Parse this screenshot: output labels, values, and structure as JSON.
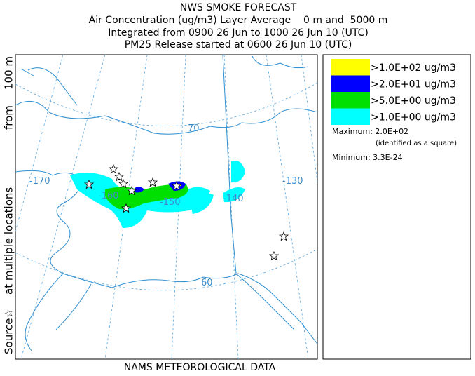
{
  "header": {
    "title": "NWS SMOKE FORECAST",
    "lines": [
      "Air Concentration (ug/m3) Layer Average    0 m and  5000 m",
      "Integrated from 0900 26 Jun to 1000 26 Jun 10 (UTC)",
      "PM25 Release started at 0600 26 Jun 10 (UTC)"
    ]
  },
  "side_label": {
    "source": "Source☆",
    "locations": "at multiple locations",
    "from": "from",
    "height": "100 m"
  },
  "footer": "NAMS METEOROLOGICAL DATA",
  "map": {
    "labels": {
      "lon_170": "-170",
      "lon_160": "-160",
      "lon_150": "-150",
      "lon_140": "-140",
      "lon_130": "-130",
      "lat_70": "70",
      "lat_60": "60"
    }
  },
  "legend": {
    "items": [
      {
        "label": ">1.0E+02 ug/m3",
        "color": "#ffff00"
      },
      {
        "label": ">2.0E+01 ug/m3",
        "color": "#0000ff"
      },
      {
        "label": ">5.0E+00 ug/m3",
        "color": "#00e000"
      },
      {
        "label": ">1.0E+00 ug/m3",
        "color": "#00ffff"
      }
    ],
    "maximum": "Maximum: 2.0E+02",
    "max_note": "(identified as a square)",
    "minimum": "Minimum: 3.3E-24"
  }
}
